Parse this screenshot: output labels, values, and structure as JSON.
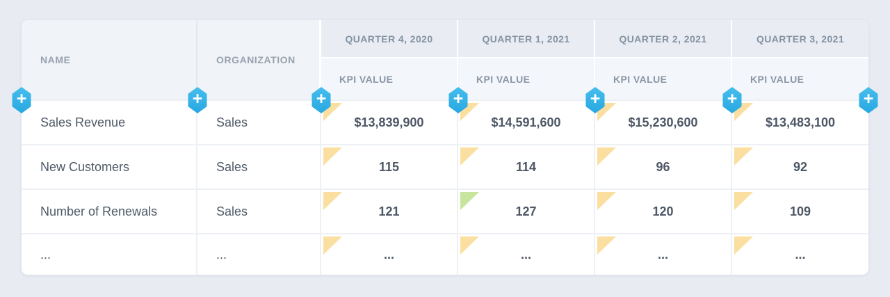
{
  "colors": {
    "accent_blue": "#2fb1e8",
    "flag_yellow": "#fbdfa0",
    "flag_green": "#c8e59e",
    "page_background": "#e8ebf2"
  },
  "icons": {
    "plus_glyph": "+"
  },
  "table": {
    "columns": [
      {
        "label": "NAME"
      },
      {
        "label": "ORGANIZATION"
      },
      {
        "label": "QUARTER 4, 2020",
        "sub_label": "KPI VALUE"
      },
      {
        "label": "QUARTER 1, 2021",
        "sub_label": "KPI VALUE"
      },
      {
        "label": "QUARTER 2, 2021",
        "sub_label": "KPI VALUE"
      },
      {
        "label": "QUARTER 3, 2021",
        "sub_label": "KPI VALUE"
      }
    ],
    "rows": [
      {
        "name": "Sales Revenue",
        "organization": "Sales",
        "values": [
          {
            "text": "$13,839,900",
            "flag": "yellow"
          },
          {
            "text": "$14,591,600",
            "flag": "yellow"
          },
          {
            "text": "$15,230,600",
            "flag": "yellow"
          },
          {
            "text": "$13,483,100",
            "flag": "yellow"
          }
        ]
      },
      {
        "name": "New Customers",
        "organization": "Sales",
        "values": [
          {
            "text": "115",
            "flag": "yellow"
          },
          {
            "text": "114",
            "flag": "yellow"
          },
          {
            "text": "96",
            "flag": "yellow"
          },
          {
            "text": "92",
            "flag": "yellow"
          }
        ]
      },
      {
        "name": "Number of Renewals",
        "organization": "Sales",
        "values": [
          {
            "text": "121",
            "flag": "yellow"
          },
          {
            "text": "127",
            "flag": "green"
          },
          {
            "text": "120",
            "flag": "yellow"
          },
          {
            "text": "109",
            "flag": "yellow"
          }
        ]
      },
      {
        "name": "...",
        "organization": "...",
        "values": [
          {
            "text": "...",
            "flag": "yellow"
          },
          {
            "text": "...",
            "flag": "yellow"
          },
          {
            "text": "...",
            "flag": "yellow"
          },
          {
            "text": "...",
            "flag": "yellow"
          }
        ]
      }
    ]
  }
}
